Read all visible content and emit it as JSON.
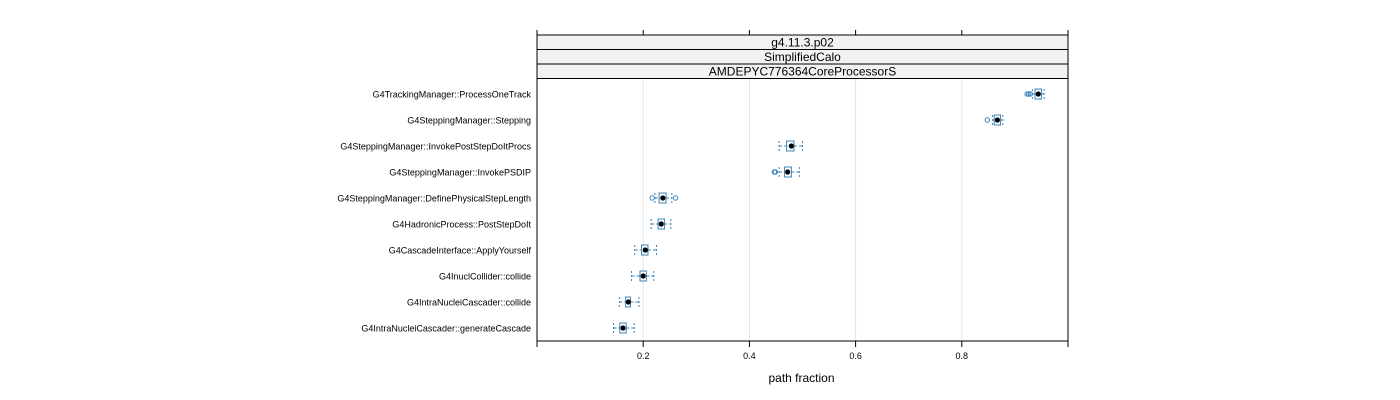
{
  "chart_data": {
    "type": "boxplot",
    "strips": [
      "g4.11.3.p02",
      "SimplifiedCalo",
      "AMDEPYC776364CoreProcessorS"
    ],
    "xlabel": "path fraction",
    "xlim": [
      0.0,
      1.0
    ],
    "xticks": [
      0.2,
      0.4,
      0.6,
      0.8
    ],
    "xtick_labels": [
      "0.2",
      "0.4",
      "0.6",
      "0.8"
    ],
    "grid": true,
    "colors": {
      "box": "#3a84b8",
      "median": "#000000",
      "grid": "#e6e6e6",
      "strip_bg": "#f2f2f2"
    },
    "categories": [
      {
        "label": "G4TrackingManager::ProcessOneTrack",
        "whisker_low": 0.933,
        "q1": 0.938,
        "median": 0.944,
        "q3": 0.95,
        "whisker_high": 0.955,
        "outliers": [
          0.923,
          0.926,
          0.929
        ]
      },
      {
        "label": "G4SteppingManager::Stepping",
        "whisker_low": 0.858,
        "q1": 0.861,
        "median": 0.867,
        "q3": 0.873,
        "whisker_high": 0.877,
        "outliers": [
          0.848
        ]
      },
      {
        "label": "G4SteppingManager::InvokePostStepDoItProcs",
        "whisker_low": 0.456,
        "q1": 0.47,
        "median": 0.479,
        "q3": 0.484,
        "whisker_high": 0.5,
        "outliers": []
      },
      {
        "label": "G4SteppingManager::InvokePSDIP",
        "whisker_low": 0.456,
        "q1": 0.466,
        "median": 0.472,
        "q3": 0.479,
        "whisker_high": 0.494,
        "outliers": [
          0.447,
          0.449
        ]
      },
      {
        "label": "G4SteppingManager::DefinePhysicalStepLength",
        "whisker_low": 0.222,
        "q1": 0.23,
        "median": 0.237,
        "q3": 0.243,
        "whisker_high": 0.254,
        "outliers": [
          0.217,
          0.261
        ]
      },
      {
        "label": "G4HadronicProcess::PostStepDoIt",
        "whisker_low": 0.215,
        "q1": 0.228,
        "median": 0.234,
        "q3": 0.24,
        "whisker_high": 0.252,
        "outliers": []
      },
      {
        "label": "G4CascadeInterface::ApplyYourself",
        "whisker_low": 0.184,
        "q1": 0.197,
        "median": 0.204,
        "q3": 0.209,
        "whisker_high": 0.225,
        "outliers": []
      },
      {
        "label": "G4InuclCollider::collide",
        "whisker_low": 0.178,
        "q1": 0.194,
        "median": 0.2,
        "q3": 0.206,
        "whisker_high": 0.22,
        "outliers": []
      },
      {
        "label": "G4IntraNucleiCascader::collide",
        "whisker_low": 0.155,
        "q1": 0.167,
        "median": 0.172,
        "q3": 0.176,
        "whisker_high": 0.192,
        "outliers": []
      },
      {
        "label": "G4IntraNucleiCascader::generateCascade",
        "whisker_low": 0.144,
        "q1": 0.156,
        "median": 0.162,
        "q3": 0.168,
        "whisker_high": 0.183,
        "outliers": []
      }
    ]
  }
}
